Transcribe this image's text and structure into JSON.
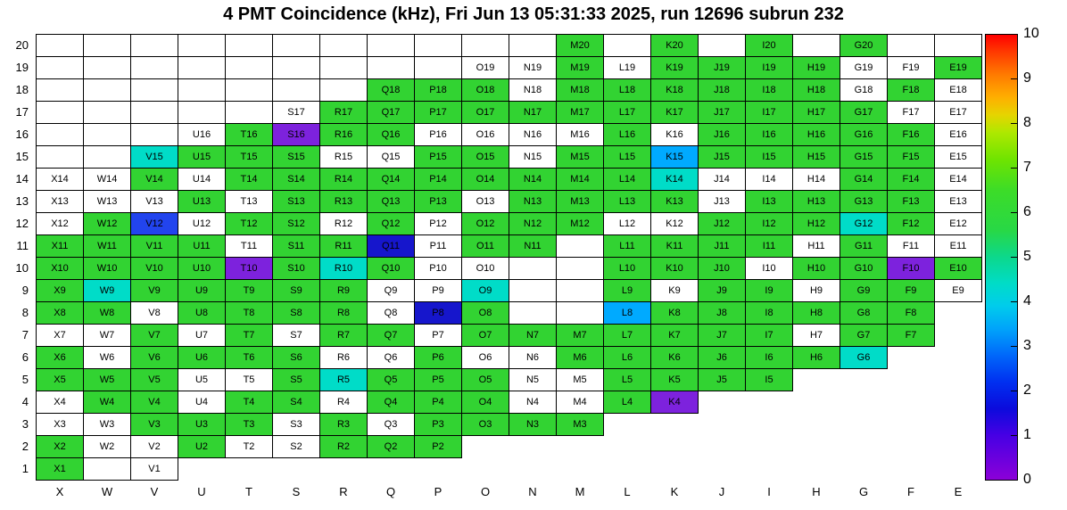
{
  "title": "4 PMT Coincidence (kHz), Fri Jun 13 05:31:33 2025, run 12696 subrun 232",
  "chart_data": {
    "type": "heatmap",
    "title": "4 PMT Coincidence (kHz), Fri Jun 13 05:31:33 2025, run 12696 subrun 232",
    "x_categories": [
      "X",
      "W",
      "V",
      "U",
      "T",
      "S",
      "R",
      "Q",
      "P",
      "O",
      "N",
      "M",
      "L",
      "K",
      "J",
      "I",
      "H",
      "G",
      "F",
      "E"
    ],
    "y_categories": [
      "20",
      "19",
      "18",
      "17",
      "16",
      "15",
      "14",
      "13",
      "12",
      "11",
      "10",
      "9",
      "8",
      "7",
      "6",
      "5",
      "4",
      "3",
      "2",
      "1"
    ],
    "colorbar": {
      "min": 0,
      "max": 10,
      "tick_labels": [
        "10",
        "9",
        "8",
        "7",
        "6",
        "5",
        "4",
        "3",
        "2",
        "1",
        "0"
      ],
      "gradient_stops": [
        {
          "pos": 0,
          "hex": "#ff0000"
        },
        {
          "pos": 4,
          "hex": "#ff3b00"
        },
        {
          "pos": 9,
          "hex": "#ff7b00"
        },
        {
          "pos": 14,
          "hex": "#ffae00"
        },
        {
          "pos": 18,
          "hex": "#e6d400"
        },
        {
          "pos": 22,
          "hex": "#aee800"
        },
        {
          "pos": 28,
          "hex": "#6fe400"
        },
        {
          "pos": 35,
          "hex": "#3cdc28"
        },
        {
          "pos": 44,
          "hex": "#28d846"
        },
        {
          "pos": 50,
          "hex": "#0cd88c"
        },
        {
          "pos": 56,
          "hex": "#00dcc8"
        },
        {
          "pos": 61,
          "hex": "#00ccec"
        },
        {
          "pos": 66,
          "hex": "#00a4fa"
        },
        {
          "pos": 72,
          "hex": "#0068fa"
        },
        {
          "pos": 78,
          "hex": "#0030f0"
        },
        {
          "pos": 84,
          "hex": "#0b0bdc"
        },
        {
          "pos": 90,
          "hex": "#4600e4"
        },
        {
          "pos": 100,
          "hex": "#8c00d8"
        }
      ]
    },
    "palette": {
      "g": {
        "hex": "#32d332",
        "approx_value": 5.2
      },
      "c": {
        "hex": "#00dcc8",
        "approx_value": 4.0
      },
      "s": {
        "hex": "#00aaff",
        "approx_value": 3.2
      },
      "b": {
        "hex": "#2244ee",
        "approx_value": 2.2
      },
      "n": {
        "hex": "#1616cc",
        "approx_value": 1.4
      },
      "p": {
        "hex": "#7d22dd",
        "approx_value": 0.6
      },
      "w": {
        "hex": "#ffffff",
        "approx_value": null
      },
      "e": {
        "hex": "#ffffff",
        "approx_value": null
      }
    },
    "rows": [
      {
        "y": "20",
        "cells": [
          "-",
          "-",
          "-",
          "-",
          "-",
          "-",
          "-",
          "-",
          "-",
          "-",
          "-",
          "g:M20",
          "-",
          "g:K20",
          "-",
          "g:I20",
          "-",
          "g:G20",
          "-",
          "-"
        ]
      },
      {
        "y": "19",
        "cells": [
          "-",
          "-",
          "-",
          "-",
          "-",
          "-",
          "-",
          "-",
          "-",
          "w:O19",
          "w:N19",
          "g:M19",
          "w:L19",
          "g:K19",
          "g:J19",
          "g:I19",
          "g:H19",
          "w:G19",
          "w:F19",
          "g:E19"
        ]
      },
      {
        "y": "18",
        "cells": [
          "-",
          "-",
          "-",
          "-",
          "-",
          "-",
          "-",
          "g:Q18",
          "g:P18",
          "g:O18",
          "w:N18",
          "g:M18",
          "g:L18",
          "g:K18",
          "g:J18",
          "g:I18",
          "g:H18",
          "w:G18",
          "g:F18",
          "w:E18"
        ]
      },
      {
        "y": "17",
        "cells": [
          "-",
          "-",
          "-",
          "-",
          "-",
          "w:S17",
          "g:R17",
          "g:Q17",
          "g:P17",
          "g:O17",
          "g:N17",
          "g:M17",
          "g:L17",
          "g:K17",
          "g:J17",
          "g:I17",
          "g:H17",
          "g:G17",
          "w:F17",
          "w:E17"
        ]
      },
      {
        "y": "16",
        "cells": [
          "-",
          "-",
          "-",
          "w:U16",
          "g:T16",
          "p:S16",
          "g:R16",
          "g:Q16",
          "w:P16",
          "w:O16",
          "w:N16",
          "w:M16",
          "g:L16",
          "w:K16",
          "g:J16",
          "g:I16",
          "g:H16",
          "g:G16",
          "g:F16",
          "w:E16"
        ]
      },
      {
        "y": "15",
        "cells": [
          "-",
          "-",
          "c:V15",
          "g:U15",
          "g:T15",
          "g:S15",
          "w:R15",
          "w:Q15",
          "g:P15",
          "g:O15",
          "w:N15",
          "g:M15",
          "g:L15",
          "s:K15",
          "g:J15",
          "g:I15",
          "g:H15",
          "g:G15",
          "g:F15",
          "w:E15"
        ]
      },
      {
        "y": "14",
        "cells": [
          "w:X14",
          "w:W14",
          "g:V14",
          "w:U14",
          "g:T14",
          "g:S14",
          "g:R14",
          "g:Q14",
          "g:P14",
          "g:O14",
          "g:N14",
          "g:M14",
          "g:L14",
          "c:K14",
          "w:J14",
          "w:I14",
          "w:H14",
          "g:G14",
          "g:F14",
          "w:E14"
        ]
      },
      {
        "y": "13",
        "cells": [
          "w:X13",
          "w:W13",
          "w:V13",
          "g:U13",
          "w:T13",
          "g:S13",
          "g:R13",
          "g:Q13",
          "g:P13",
          "w:O13",
          "g:N13",
          "g:M13",
          "g:L13",
          "g:K13",
          "w:J13",
          "g:I13",
          "g:H13",
          "g:G13",
          "g:F13",
          "w:E13"
        ]
      },
      {
        "y": "12",
        "cells": [
          "w:X12",
          "g:W12",
          "b:V12",
          "w:U12",
          "g:T12",
          "g:S12",
          "w:R12",
          "g:Q12",
          "w:P12",
          "g:O12",
          "g:N12",
          "g:M12",
          "w:L12",
          "w:K12",
          "g:J12",
          "g:I12",
          "g:H12",
          "c:G12",
          "g:F12",
          "w:E12"
        ]
      },
      {
        "y": "11",
        "cells": [
          "g:X11",
          "g:W11",
          "g:V11",
          "g:U11",
          "w:T11",
          "g:S11",
          "g:R11",
          "n:Q11",
          "w:P11",
          "g:O11",
          "g:N11",
          "-",
          "g:L11",
          "g:K11",
          "g:J11",
          "g:I11",
          "w:H11",
          "g:G11",
          "w:F11",
          "w:E11"
        ]
      },
      {
        "y": "10",
        "cells": [
          "g:X10",
          "g:W10",
          "g:V10",
          "g:U10",
          "p:T10",
          "g:S10",
          "c:R10",
          "g:Q10",
          "w:P10",
          "w:O10",
          "-",
          "-",
          "g:L10",
          "g:K10",
          "g:J10",
          "w:I10",
          "g:H10",
          "g:G10",
          "p:F10",
          "g:E10"
        ]
      },
      {
        "y": "9",
        "cells": [
          "g:X9",
          "c:W9",
          "g:V9",
          "g:U9",
          "g:T9",
          "g:S9",
          "g:R9",
          "w:Q9",
          "w:P9",
          "c:O9",
          "-",
          "-",
          "g:L9",
          "w:K9",
          "g:J9",
          "g:I9",
          "w:H9",
          "g:G9",
          "g:F9",
          "w:E9"
        ]
      },
      {
        "y": "8",
        "cells": [
          "g:X8",
          "g:W8",
          "w:V8",
          "g:U8",
          "g:T8",
          "g:S8",
          "g:R8",
          "w:Q8",
          "n:P8",
          "g:O8",
          "-",
          "-",
          "s:L8",
          "g:K8",
          "g:J8",
          "g:I8",
          "g:H8",
          "g:G8",
          "g:F8",
          ""
        ]
      },
      {
        "y": "7",
        "cells": [
          "w:X7",
          "w:W7",
          "g:V7",
          "w:U7",
          "g:T7",
          "w:S7",
          "g:R7",
          "g:Q7",
          "w:P7",
          "g:O7",
          "g:N7",
          "g:M7",
          "g:L7",
          "g:K7",
          "g:J7",
          "g:I7",
          "w:H7",
          "g:G7",
          "g:F7",
          ""
        ]
      },
      {
        "y": "6",
        "cells": [
          "g:X6",
          "w:W6",
          "g:V6",
          "g:U6",
          "g:T6",
          "g:S6",
          "w:R6",
          "w:Q6",
          "g:P6",
          "w:O6",
          "w:N6",
          "g:M6",
          "g:L6",
          "g:K6",
          "g:J6",
          "g:I6",
          "g:H6",
          "c:G6",
          "",
          ""
        ]
      },
      {
        "y": "5",
        "cells": [
          "g:X5",
          "g:W5",
          "g:V5",
          "w:U5",
          "w:T5",
          "g:S5",
          "c:R5",
          "g:Q5",
          "g:P5",
          "g:O5",
          "w:N5",
          "w:M5",
          "g:L5",
          "g:K5",
          "g:J5",
          "g:I5",
          "",
          "",
          "",
          ""
        ]
      },
      {
        "y": "4",
        "cells": [
          "w:X4",
          "g:W4",
          "g:V4",
          "w:U4",
          "g:T4",
          "g:S4",
          "w:R4",
          "g:Q4",
          "g:P4",
          "g:O4",
          "w:N4",
          "w:M4",
          "g:L4",
          "p:K4",
          "",
          "",
          "",
          "",
          "",
          ""
        ]
      },
      {
        "y": "3",
        "cells": [
          "w:X3",
          "w:W3",
          "g:V3",
          "g:U3",
          "g:T3",
          "w:S3",
          "g:R3",
          "w:Q3",
          "g:P3",
          "g:O3",
          "g:N3",
          "g:M3",
          "",
          "",
          "",
          "",
          "",
          "",
          "",
          ""
        ]
      },
      {
        "y": "2",
        "cells": [
          "g:X2",
          "w:W2",
          "w:V2",
          "g:U2",
          "w:T2",
          "w:S2",
          "g:R2",
          "g:Q2",
          "g:P2",
          "",
          "",
          "",
          "",
          "",
          "",
          "",
          "",
          "",
          "",
          ""
        ]
      },
      {
        "y": "1",
        "cells": [
          "g:X1",
          "-",
          "w:V1",
          "",
          "",
          "",
          "",
          "",
          "",
          "",
          "",
          "",
          "",
          "",
          "",
          "",
          "",
          "",
          "",
          ""
        ]
      }
    ]
  }
}
